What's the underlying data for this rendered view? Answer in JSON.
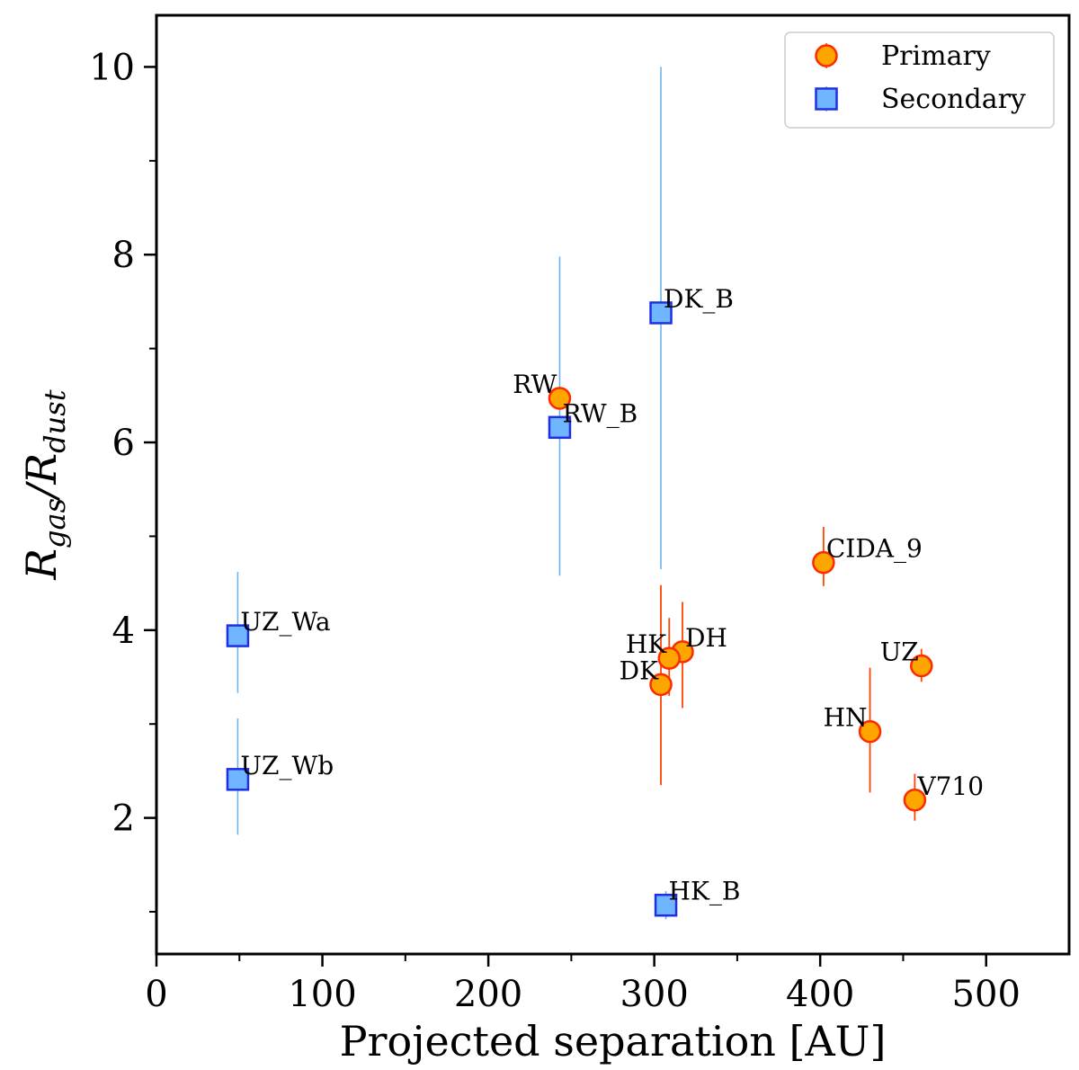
{
  "chart_data": {
    "type": "scatter",
    "xlabel": "Projected separation [AU]",
    "ylabel": {
      "main": "R",
      "sub1": "gas",
      "sep": "/R",
      "sub2": "dust"
    },
    "xlim": [
      0,
      550
    ],
    "ylim": [
      0.55,
      10.55
    ],
    "xticks": [
      0,
      100,
      200,
      300,
      400,
      500
    ],
    "xminor": [
      50,
      150,
      250,
      350,
      450
    ],
    "yticks": [
      2,
      4,
      6,
      8,
      10
    ],
    "yminor": [
      1,
      3,
      5,
      7,
      9
    ],
    "grid": false,
    "legend_position": "top-right",
    "colors": {
      "primary_fill": "#ffa500",
      "primary_edge": "#ff2a00",
      "primary_err": "#ff4500",
      "secondary_fill": "#6fb5ff",
      "secondary_edge": "#1f2fe6",
      "secondary_err": "#6cb4ee"
    },
    "series": [
      {
        "name": "Primary",
        "marker": "circle",
        "points": [
          {
            "label": "RW",
            "x": 243,
            "y": 6.47,
            "yerr": [
              6.47,
              6.47
            ],
            "label_pos": "left"
          },
          {
            "label": "CIDA_9",
            "x": 402,
            "y": 4.72,
            "yerr": [
              4.47,
              5.1
            ],
            "label_pos": "right"
          },
          {
            "label": "DH",
            "x": 317,
            "y": 3.77,
            "yerr": [
              3.17,
              4.3
            ],
            "label_pos": "right"
          },
          {
            "label": "HK",
            "x": 309,
            "y": 3.7,
            "yerr": [
              3.3,
              4.13
            ],
            "label_pos": "left"
          },
          {
            "label": "DK",
            "x": 304,
            "y": 3.42,
            "yerr": [
              2.35,
              4.48
            ],
            "label_pos": "left"
          },
          {
            "label": "UZ",
            "x": 461,
            "y": 3.62,
            "yerr": [
              3.45,
              3.8
            ],
            "label_pos": "left"
          },
          {
            "label": "HN",
            "x": 430,
            "y": 2.92,
            "yerr": [
              2.27,
              3.6
            ],
            "label_pos": "left"
          },
          {
            "label": "V710",
            "x": 457,
            "y": 2.19,
            "yerr": [
              1.97,
              2.47
            ],
            "label_pos": "right"
          }
        ]
      },
      {
        "name": "Secondary",
        "marker": "square",
        "points": [
          {
            "label": "DK_B",
            "x": 304,
            "y": 7.38,
            "yerr": [
              4.65,
              10.0
            ],
            "label_pos": "right"
          },
          {
            "label": "RW_B",
            "x": 243,
            "y": 6.16,
            "yerr": [
              4.58,
              7.98
            ],
            "label_pos": "right"
          },
          {
            "label": "UZ_Wa",
            "x": 49,
            "y": 3.94,
            "yerr": [
              3.33,
              4.62
            ],
            "label_pos": "right"
          },
          {
            "label": "UZ_Wb",
            "x": 49,
            "y": 2.41,
            "yerr": [
              1.82,
              3.06
            ],
            "label_pos": "right"
          },
          {
            "label": "HK_B",
            "x": 307,
            "y": 1.07,
            "yerr": [
              0.92,
              1.22
            ],
            "label_pos": "right"
          }
        ]
      }
    ]
  }
}
